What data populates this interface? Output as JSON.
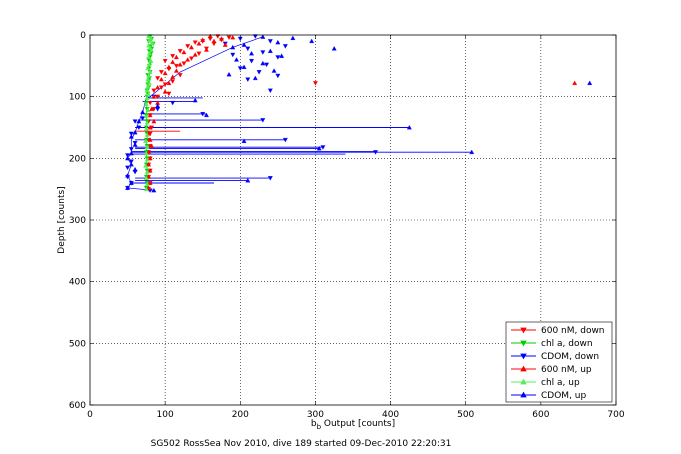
{
  "chart_data": {
    "type": "scatter",
    "caption": "SG502 RossSea Nov 2010, dive 189 started 09-Dec-2010 22:20:31",
    "xlabel_main": "b",
    "xlabel_sub": "b",
    "xlabel_rest": " Output [counts]",
    "ylabel": "Depth [counts]",
    "xlim": [
      0,
      700
    ],
    "ylim": [
      0,
      600
    ],
    "y_reversed": true,
    "grid": true,
    "grid_style": "dotted",
    "x_ticks": [
      0,
      100,
      200,
      300,
      400,
      500,
      600,
      700
    ],
    "y_ticks": [
      0,
      100,
      200,
      300,
      400,
      500,
      600
    ],
    "legend_position": "bottom-right",
    "series": [
      {
        "name": "600 nM, down",
        "color": "#ff0000",
        "marker": "triangle-down",
        "points": [
          [
            170,
            2
          ],
          [
            185,
            4
          ],
          [
            160,
            6
          ],
          [
            175,
            8
          ],
          [
            150,
            10
          ],
          [
            140,
            12
          ],
          [
            165,
            14
          ],
          [
            130,
            18
          ],
          [
            155,
            22
          ],
          [
            120,
            26
          ],
          [
            145,
            30
          ],
          [
            110,
            34
          ],
          [
            135,
            38
          ],
          [
            100,
            42
          ],
          [
            125,
            46
          ],
          [
            115,
            50
          ],
          [
            105,
            55
          ],
          [
            95,
            60
          ],
          [
            120,
            65
          ],
          [
            90,
            70
          ],
          [
            110,
            75
          ],
          [
            100,
            80
          ],
          [
            300,
            78
          ],
          [
            95,
            85
          ],
          [
            85,
            90
          ],
          [
            105,
            95
          ],
          [
            90,
            100
          ],
          [
            80,
            110
          ],
          [
            85,
            120
          ],
          [
            80,
            130
          ],
          [
            78,
            140
          ],
          [
            82,
            150
          ],
          [
            80,
            160
          ],
          [
            78,
            170
          ],
          [
            80,
            180
          ],
          [
            78,
            190
          ],
          [
            80,
            200
          ],
          [
            78,
            210
          ],
          [
            80,
            220
          ],
          [
            78,
            230
          ],
          [
            80,
            240
          ],
          [
            78,
            250
          ]
        ]
      },
      {
        "name": "chl a, down",
        "color": "#00cc00",
        "marker": "triangle-down",
        "points": [
          [
            80,
            2
          ],
          [
            82,
            6
          ],
          [
            78,
            10
          ],
          [
            84,
            14
          ],
          [
            80,
            18
          ],
          [
            82,
            22
          ],
          [
            79,
            26
          ],
          [
            81,
            30
          ],
          [
            80,
            35
          ],
          [
            78,
            40
          ],
          [
            80,
            45
          ],
          [
            79,
            50
          ],
          [
            78,
            55
          ],
          [
            80,
            60
          ],
          [
            77,
            65
          ],
          [
            79,
            70
          ],
          [
            78,
            75
          ],
          [
            77,
            80
          ],
          [
            78,
            85
          ],
          [
            76,
            90
          ],
          [
            77,
            95
          ],
          [
            76,
            100
          ],
          [
            75,
            110
          ],
          [
            76,
            120
          ],
          [
            75,
            130
          ],
          [
            76,
            140
          ],
          [
            75,
            150
          ],
          [
            76,
            160
          ],
          [
            75,
            170
          ],
          [
            76,
            180
          ],
          [
            75,
            190
          ],
          [
            76,
            200
          ],
          [
            75,
            210
          ],
          [
            76,
            220
          ],
          [
            75,
            230
          ],
          [
            76,
            240
          ],
          [
            75,
            248
          ]
        ]
      },
      {
        "name": "CDOM, down",
        "color": "#0000ff",
        "marker": "triangle-down",
        "points": [
          [
            220,
            2
          ],
          [
            200,
            6
          ],
          [
            240,
            10
          ],
          [
            180,
            14
          ],
          [
            260,
            18
          ],
          [
            210,
            22
          ],
          [
            230,
            28
          ],
          [
            190,
            32
          ],
          [
            250,
            36
          ],
          [
            215,
            42
          ],
          [
            235,
            48
          ],
          [
            200,
            54
          ],
          [
            225,
            60
          ],
          [
            250,
            66
          ],
          [
            210,
            72
          ],
          [
            240,
            90
          ],
          [
            85,
            100
          ],
          [
            110,
            110
          ],
          [
            90,
            120
          ],
          [
            150,
            128
          ],
          [
            70,
            135
          ],
          [
            60,
            140
          ],
          [
            230,
            138
          ],
          [
            65,
            150
          ],
          [
            55,
            160
          ],
          [
            260,
            170
          ],
          [
            60,
            175
          ],
          [
            55,
            185
          ],
          [
            310,
            182
          ],
          [
            50,
            195
          ],
          [
            380,
            190
          ],
          [
            55,
            205
          ],
          [
            50,
            215
          ],
          [
            60,
            222
          ],
          [
            50,
            230
          ],
          [
            240,
            232
          ],
          [
            55,
            240
          ],
          [
            50,
            248
          ],
          [
            80,
            252
          ]
        ]
      },
      {
        "name": "600 nM, up",
        "color": "#ff0000",
        "marker": "triangle-up",
        "points": [
          [
            160,
            2
          ],
          [
            190,
            4
          ],
          [
            175,
            6
          ],
          [
            150,
            8
          ],
          [
            165,
            10
          ],
          [
            145,
            14
          ],
          [
            180,
            16
          ],
          [
            135,
            20
          ],
          [
            155,
            24
          ],
          [
            125,
            28
          ],
          [
            140,
            32
          ],
          [
            115,
            36
          ],
          [
            130,
            40
          ],
          [
            110,
            44
          ],
          [
            120,
            48
          ],
          [
            105,
            52
          ],
          [
            115,
            58
          ],
          [
            100,
            62
          ],
          [
            110,
            68
          ],
          [
            95,
            72
          ],
          [
            105,
            78
          ],
          [
            645,
            78
          ],
          [
            90,
            85
          ],
          [
            100,
            92
          ],
          [
            85,
            100
          ],
          [
            90,
            110
          ],
          [
            82,
            120
          ],
          [
            80,
            130
          ],
          [
            85,
            140
          ],
          [
            80,
            150
          ],
          [
            78,
            160
          ],
          [
            80,
            170
          ],
          [
            82,
            180
          ],
          [
            78,
            190
          ],
          [
            80,
            200
          ],
          [
            78,
            210
          ],
          [
            80,
            220
          ],
          [
            78,
            230
          ],
          [
            80,
            240
          ],
          [
            78,
            248
          ]
        ]
      },
      {
        "name": "chl a, up",
        "color": "#55ee55",
        "marker": "triangle-up",
        "points": [
          [
            78,
            2
          ],
          [
            81,
            5
          ],
          [
            79,
            9
          ],
          [
            83,
            13
          ],
          [
            78,
            17
          ],
          [
            80,
            21
          ],
          [
            82,
            25
          ],
          [
            79,
            30
          ],
          [
            78,
            36
          ],
          [
            81,
            42
          ],
          [
            79,
            48
          ],
          [
            77,
            54
          ],
          [
            80,
            60
          ],
          [
            78,
            66
          ],
          [
            77,
            72
          ],
          [
            79,
            78
          ],
          [
            77,
            84
          ],
          [
            76,
            90
          ],
          [
            78,
            96
          ],
          [
            76,
            102
          ],
          [
            75,
            112
          ],
          [
            77,
            122
          ],
          [
            75,
            132
          ],
          [
            76,
            142
          ],
          [
            75,
            152
          ],
          [
            76,
            162
          ],
          [
            74,
            172
          ],
          [
            76,
            182
          ],
          [
            75,
            192
          ],
          [
            76,
            202
          ],
          [
            74,
            212
          ],
          [
            76,
            222
          ],
          [
            75,
            232
          ],
          [
            76,
            242
          ],
          [
            75,
            250
          ]
        ]
      },
      {
        "name": "CDOM, up",
        "color": "#0000ff",
        "marker": "triangle-up",
        "points": [
          [
            230,
            3
          ],
          [
            270,
            5
          ],
          [
            325,
            22
          ],
          [
            250,
            12
          ],
          [
            205,
            16
          ],
          [
            295,
            10
          ],
          [
            190,
            20
          ],
          [
            240,
            26
          ],
          [
            215,
            30
          ],
          [
            255,
            34
          ],
          [
            195,
            40
          ],
          [
            230,
            46
          ],
          [
            205,
            52
          ],
          [
            245,
            58
          ],
          [
            185,
            64
          ],
          [
            220,
            70
          ],
          [
            665,
            78
          ],
          [
            140,
            106
          ],
          [
            90,
            115
          ],
          [
            70,
            125
          ],
          [
            155,
            130
          ],
          [
            65,
            140
          ],
          [
            425,
            150
          ],
          [
            60,
            158
          ],
          [
            55,
            165
          ],
          [
            205,
            172
          ],
          [
            60,
            178
          ],
          [
            305,
            184
          ],
          [
            55,
            192
          ],
          [
            508,
            190
          ],
          [
            50,
            200
          ],
          [
            55,
            210
          ],
          [
            60,
            218
          ],
          [
            210,
            236
          ],
          [
            50,
            228
          ],
          [
            55,
            240
          ],
          [
            50,
            248
          ],
          [
            85,
            252
          ]
        ]
      }
    ],
    "spikes": [
      {
        "y": 102,
        "x_from": 75,
        "x_to": 150,
        "color": "#0000ff"
      },
      {
        "y": 108,
        "x_from": 70,
        "x_to": 140,
        "color": "#0000ff"
      },
      {
        "y": 128,
        "x_from": 70,
        "x_to": 155,
        "color": "#0000ff"
      },
      {
        "y": 138,
        "x_from": 65,
        "x_to": 230,
        "color": "#0000ff"
      },
      {
        "y": 150,
        "x_from": 60,
        "x_to": 425,
        "color": "#0000ff"
      },
      {
        "y": 156,
        "x_from": 60,
        "x_to": 120,
        "color": "#ff0000"
      },
      {
        "y": 170,
        "x_from": 60,
        "x_to": 260,
        "color": "#0000ff"
      },
      {
        "y": 182,
        "x_from": 60,
        "x_to": 310,
        "color": "#0000ff"
      },
      {
        "y": 184,
        "x_from": 60,
        "x_to": 305,
        "color": "#0000ff"
      },
      {
        "y": 189,
        "x_from": 55,
        "x_to": 380,
        "color": "#0000ff"
      },
      {
        "y": 190,
        "x_from": 55,
        "x_to": 508,
        "color": "#0000ff"
      },
      {
        "y": 193,
        "x_from": 55,
        "x_to": 340,
        "color": "#0000ff"
      },
      {
        "y": 232,
        "x_from": 60,
        "x_to": 240,
        "color": "#0000ff"
      },
      {
        "y": 236,
        "x_from": 60,
        "x_to": 210,
        "color": "#0000ff"
      },
      {
        "y": 240,
        "x_from": 55,
        "x_to": 165,
        "color": "#0000ff"
      }
    ],
    "profiles": [
      {
        "color": "#0000ff",
        "points": [
          [
            230,
            3
          ],
          [
            190,
            20
          ],
          [
            120,
            60
          ],
          [
            80,
            100
          ],
          [
            75,
            102
          ],
          [
            70,
            125
          ],
          [
            65,
            140
          ],
          [
            60,
            158
          ],
          [
            55,
            170
          ],
          [
            55,
            192
          ],
          [
            50,
            200
          ],
          [
            55,
            210
          ],
          [
            50,
            228
          ],
          [
            55,
            240
          ],
          [
            50,
            248
          ],
          [
            85,
            252
          ]
        ]
      },
      {
        "color": "#00cc00",
        "points": [
          [
            80,
            2
          ],
          [
            82,
            22
          ],
          [
            78,
            40
          ],
          [
            80,
            60
          ],
          [
            77,
            80
          ],
          [
            76,
            100
          ],
          [
            75,
            130
          ],
          [
            76,
            160
          ],
          [
            75,
            190
          ],
          [
            76,
            220
          ],
          [
            75,
            250
          ]
        ]
      }
    ]
  }
}
